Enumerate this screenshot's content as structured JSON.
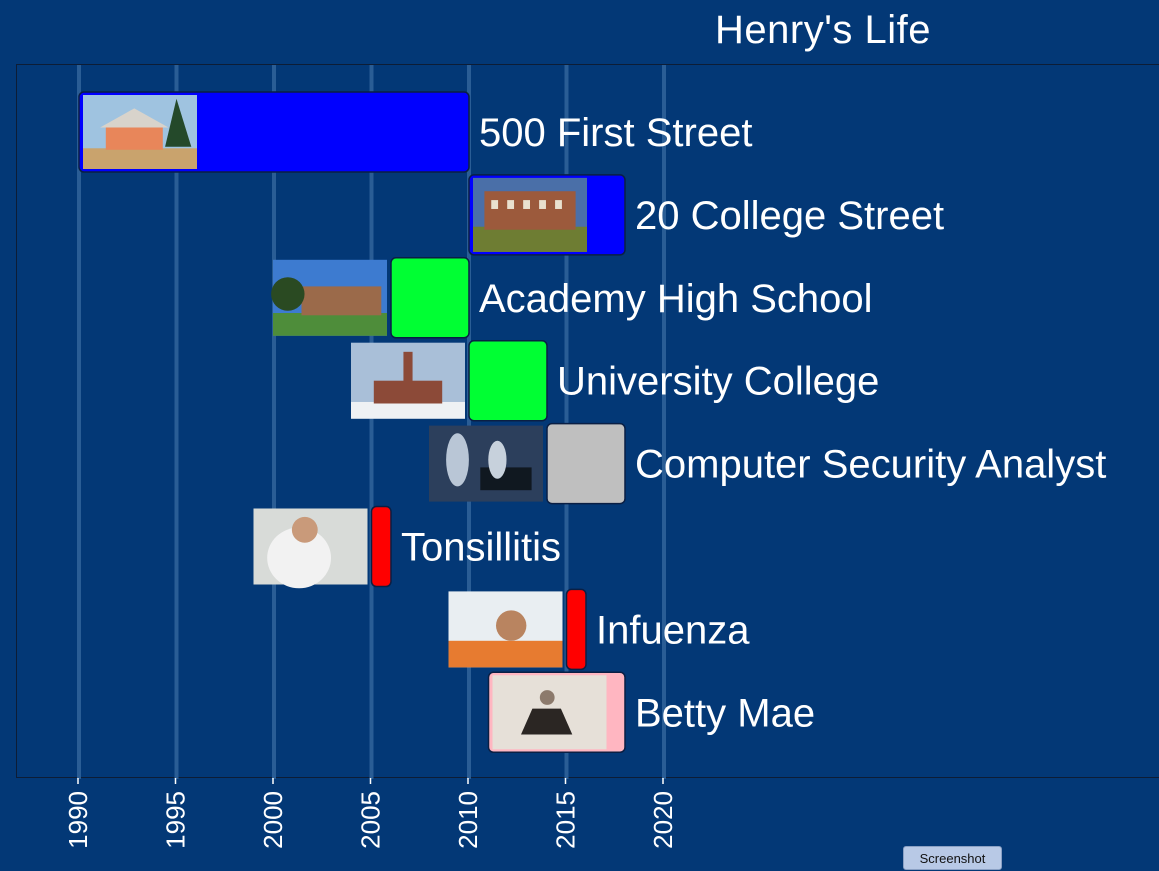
{
  "chart_data": {
    "type": "timeline",
    "title": "Henry's Life",
    "xlim": [
      1989,
      2040
    ],
    "x_ticks": [
      1990,
      1995,
      2000,
      2005,
      2010,
      2015,
      2020
    ],
    "grid": true,
    "events": [
      {
        "label": "500 First Street",
        "start": 1990,
        "end": 2010,
        "color": "#0000ff",
        "image": "house-photo",
        "image_position": "inside"
      },
      {
        "label": "20 College Street",
        "start": 2010,
        "end": 2018,
        "color": "#0000ff",
        "image": "brick-building-photo",
        "image_position": "inside"
      },
      {
        "label": "Academy High School",
        "start": 2006,
        "end": 2010,
        "color": "#00ff33",
        "image": "school-photo",
        "image_position": "left"
      },
      {
        "label": "University College",
        "start": 2010,
        "end": 2014,
        "color": "#00ff33",
        "image": "campus-photo",
        "image_position": "left"
      },
      {
        "label": "Computer Security Analyst",
        "start": 2014,
        "end": 2018,
        "color": "#bfbfbf",
        "image": "office-photo",
        "image_position": "left"
      },
      {
        "label": "Tonsillitis",
        "start": 2005,
        "end": 2006,
        "color": "#ff0000",
        "image": "doctor-photo",
        "image_position": "left"
      },
      {
        "label": "Infuenza",
        "start": 2015,
        "end": 2016,
        "color": "#ff0000",
        "image": "sick-man-photo",
        "image_position": "left"
      },
      {
        "label": "Betty Mae",
        "start": 2011,
        "end": 2018,
        "color": "#ffb6c1",
        "image": "woman-photo",
        "image_position": "inside"
      }
    ]
  },
  "ui": {
    "screenshot_label": "Screenshot"
  }
}
